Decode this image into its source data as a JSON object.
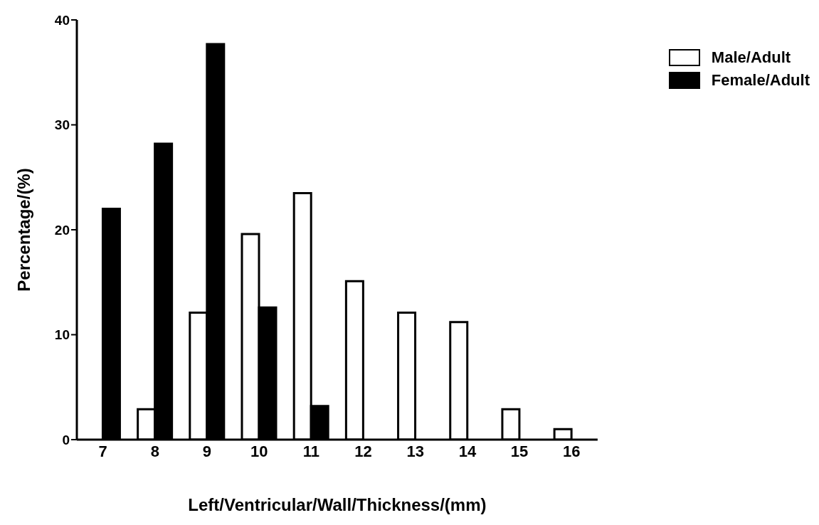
{
  "chart_data": {
    "type": "bar",
    "xlabel": "Left/Ventricular/Wall/Thickness/(mm)",
    "ylabel": "Percentage/(%)",
    "categories": [
      "7",
      "8",
      "9",
      "10",
      "11",
      "12",
      "13",
      "14",
      "15",
      "16"
    ],
    "series": [
      {
        "name": "Male/Adult",
        "color": "#ffffff",
        "values": [
          null,
          2.9,
          12.1,
          19.6,
          23.5,
          15.1,
          12.1,
          11.2,
          2.9,
          1.0
        ]
      },
      {
        "name": "Female/Adult",
        "color": "#000000",
        "values": [
          22.0,
          28.2,
          37.7,
          12.6,
          3.2,
          null,
          null,
          null,
          null,
          null
        ]
      }
    ],
    "ylim": [
      0,
      40
    ],
    "yticks": [
      0,
      10,
      20,
      30,
      40
    ],
    "grid": false,
    "legend": "top right"
  }
}
